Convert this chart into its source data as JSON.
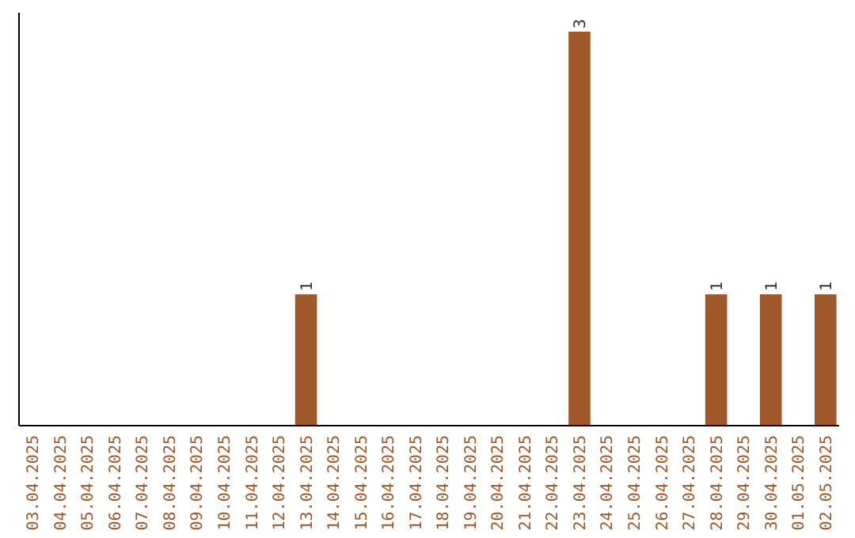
{
  "chart_data": {
    "type": "bar",
    "categories": [
      "03.04.2025",
      "04.04.2025",
      "05.04.2025",
      "06.04.2025",
      "07.04.2025",
      "08.04.2025",
      "09.04.2025",
      "10.04.2025",
      "11.04.2025",
      "12.04.2025",
      "13.04.2025",
      "14.04.2025",
      "15.04.2025",
      "16.04.2025",
      "17.04.2025",
      "18.04.2025",
      "19.04.2025",
      "20.04.2025",
      "21.04.2025",
      "22.04.2025",
      "23.04.2025",
      "24.04.2025",
      "25.04.2025",
      "26.04.2025",
      "27.04.2025",
      "28.04.2025",
      "29.04.2025",
      "30.04.2025",
      "01.05.2025",
      "02.05.2025"
    ],
    "values": [
      0,
      0,
      0,
      0,
      0,
      0,
      0,
      0,
      0,
      0,
      1,
      0,
      0,
      0,
      0,
      0,
      0,
      0,
      0,
      0,
      3,
      0,
      0,
      0,
      0,
      1,
      0,
      1,
      0,
      1
    ],
    "value_labels": [
      null,
      null,
      null,
      null,
      null,
      null,
      null,
      null,
      null,
      null,
      "1",
      null,
      null,
      null,
      null,
      null,
      null,
      null,
      null,
      null,
      "3",
      null,
      null,
      null,
      null,
      "1",
      null,
      "1",
      null,
      "1"
    ],
    "color": "#a0582a",
    "tick_labels": "x"
  }
}
